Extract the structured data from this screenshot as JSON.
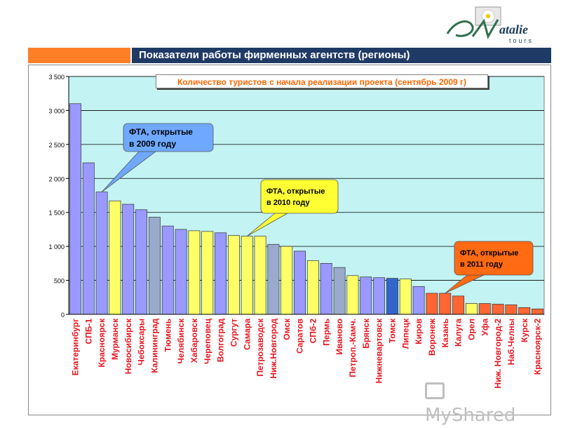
{
  "header": {
    "title": "Показатели работы фирменных агентств (регионы)",
    "logo_text": "Natalie tours",
    "accent_color": "#ff7f27",
    "title_bar_color": "#1f3a64"
  },
  "watermark": {
    "text": "MyShared"
  },
  "chart_data": {
    "type": "bar",
    "title": "Количество туристов с начала реализации проекта (сентябрь 2009 г)",
    "xlabel": "",
    "ylabel": "",
    "ylim": [
      0,
      3500
    ],
    "yticks": [
      0,
      500,
      1000,
      1500,
      2000,
      2500,
      3000,
      3500
    ],
    "ytick_labels": [
      "0",
      "500",
      "1 000",
      "1 500",
      "2 000",
      "2 500",
      "3 000",
      "3 500"
    ],
    "grid": true,
    "plot_background": "#c3f3f3",
    "categories": [
      "Екатеринбург",
      "СПБ-1",
      "Красноярск",
      "Мурманск",
      "Новосибирск",
      "Чебоксары",
      "Калининград",
      "Тюмень",
      "Челябинск",
      "Хабаровск",
      "Череповец",
      "Волгоград",
      "Сургут",
      "Самара",
      "Петрозаводск",
      "Ниж.Новгород",
      "Омск",
      "Саратов",
      "СПб-2",
      "Пермь",
      "Иваново",
      "Петроп.-Камч.",
      "Брянск",
      "Нижневартовск",
      "Томск",
      "Липецк",
      "Киров",
      "Воронеж",
      "Казань",
      "Калуга",
      "Орел",
      "Уфа",
      "Ниж. Новгород-2",
      "Наб.Челны",
      "Курск",
      "Красноярск-2"
    ],
    "values": [
      3100,
      2230,
      1800,
      1670,
      1620,
      1540,
      1430,
      1300,
      1250,
      1230,
      1220,
      1200,
      1160,
      1150,
      1150,
      1030,
      1000,
      930,
      790,
      750,
      690,
      570,
      550,
      540,
      530,
      520,
      410,
      310,
      310,
      270,
      160,
      160,
      150,
      140,
      100,
      80
    ],
    "bar_colors": [
      "#9999ff",
      "#9999ff",
      "#9999ff",
      "#ffff66",
      "#9999ff",
      "#9999ff",
      "#99aacc",
      "#9999ff",
      "#9999ff",
      "#ffff66",
      "#ffff66",
      "#9999ff",
      "#ffff66",
      "#ffff66",
      "#ffff66",
      "#99aacc",
      "#ffff66",
      "#9999ff",
      "#ffff66",
      "#9999ff",
      "#99aacc",
      "#ffff66",
      "#9999ff",
      "#9999ff",
      "#3366cc",
      "#ffff66",
      "#9999ff",
      "#ff6633",
      "#ff6633",
      "#ff6633",
      "#ffff66",
      "#ff6633",
      "#ff6633",
      "#ff6633",
      "#ff6633",
      "#ff6633"
    ],
    "annotations": [
      {
        "text": "ФТА, открытые в 2009 году",
        "fill": "#6fa8ff",
        "target_category": "Красноярск"
      },
      {
        "text": "ФТА, открытые в 2010 году",
        "fill": "#ffff33",
        "target_category": "Самара"
      },
      {
        "text": "ФТА, открытые в 2011 году",
        "fill": "#ff6a13",
        "target_category": "Казань"
      }
    ]
  }
}
